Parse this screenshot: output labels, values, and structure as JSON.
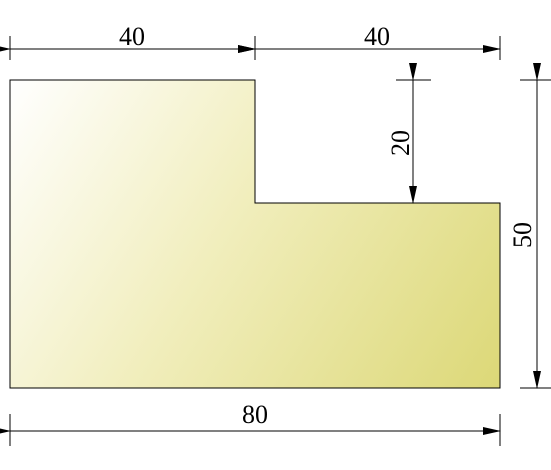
{
  "dimensions": {
    "top_left": "40",
    "top_right": "40",
    "step_height": "20",
    "overall_height": "50",
    "overall_width": "80"
  },
  "colors": {
    "fill_light": "#ffffff",
    "fill_mid": "#f4f2c8",
    "fill_dark": "#dcd877",
    "line": "#000000"
  }
}
